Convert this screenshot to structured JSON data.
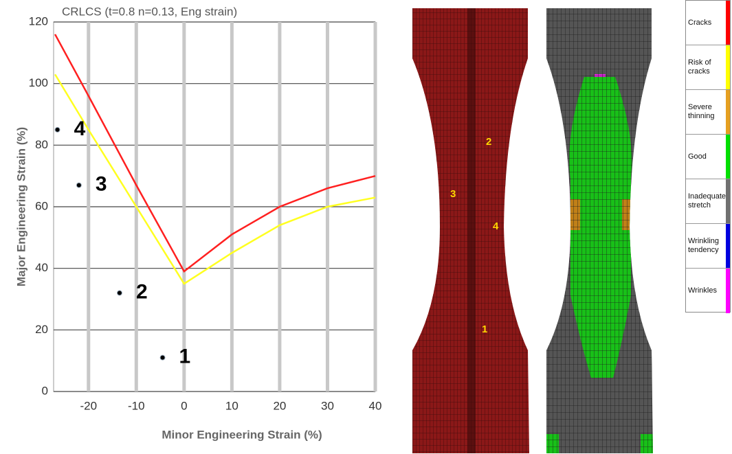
{
  "chart_data": {
    "type": "line",
    "title": "CRLCS (t=0.8 n=0.13, Eng strain)",
    "x_label": "Minor Engineering Strain (%)",
    "y_label": "Major Engineering Strain (%)",
    "x": [
      -27,
      -20,
      -10,
      0,
      5,
      10,
      20,
      30,
      40
    ],
    "series": [
      {
        "color": "#ff2020",
        "values": [
          116,
          96,
          67,
          39,
          45,
          51,
          60,
          66,
          70
        ]
      },
      {
        "color": "#ffff20",
        "values": [
          103,
          85,
          60,
          35,
          40,
          45,
          54,
          60,
          63
        ]
      }
    ],
    "points": {
      "x": [
        -4.5,
        -13.5,
        -22,
        -26.5
      ],
      "y": [
        11,
        32,
        67,
        85
      ],
      "labels": [
        "1",
        "2",
        "3",
        "4"
      ]
    },
    "xlim": [
      -27.3,
      40
    ],
    "ylim": [
      0,
      120
    ],
    "xticks": [
      -20,
      -10,
      0,
      10,
      20,
      30,
      40
    ],
    "yticks": [
      0,
      20,
      40,
      60,
      80,
      100,
      120
    ],
    "grid": true
  },
  "specimen_labels": [
    "2",
    "3",
    "4",
    "1"
  ],
  "legend": {
    "items": [
      {
        "label": "Cracks",
        "color": "#ff0000"
      },
      {
        "label": "Risk of cracks",
        "color": "#ffff00"
      },
      {
        "label": "Severe thinning",
        "color": "#e6a020"
      },
      {
        "label": "Good",
        "color": "#00e000"
      },
      {
        "label": "Inadequate stretch",
        "color": "#707070"
      },
      {
        "label": "Wrinkling tendency",
        "color": "#0000e0"
      },
      {
        "label": "Wrinkles",
        "color": "#ff00ff"
      }
    ]
  }
}
